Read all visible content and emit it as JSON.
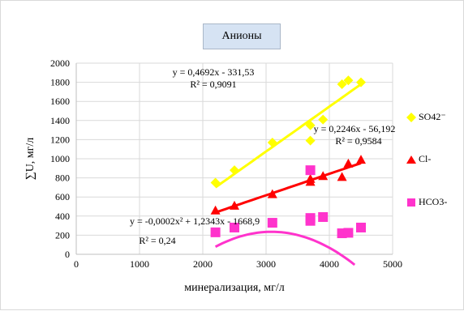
{
  "chart_data": {
    "type": "scatter",
    "title": "Анионы",
    "xlabel": "минерализация, мг/л",
    "ylabel": "∑U, мг/л",
    "xlim": [
      0,
      5000
    ],
    "ylim": [
      0,
      2000
    ],
    "x_ticks": [
      "0",
      "1000",
      "2000",
      "3000",
      "4000",
      "5000"
    ],
    "y_ticks": [
      "0",
      "200",
      "400",
      "600",
      "800",
      "1000",
      "1200",
      "1400",
      "1600",
      "1800",
      "2000"
    ],
    "grid": true,
    "legend_position": "right",
    "series": [
      {
        "name": "SO42⁻",
        "color": "#ffff00",
        "marker": "diamond",
        "points": [
          [
            2200,
            750
          ],
          [
            2500,
            880
          ],
          [
            3100,
            1170
          ],
          [
            3700,
            1350
          ],
          [
            3700,
            1190
          ],
          [
            3900,
            1410
          ],
          [
            4200,
            1780
          ],
          [
            4300,
            1820
          ],
          [
            4500,
            1800
          ]
        ],
        "trendline": {
          "kind": "linear",
          "coef": [
            0.4692,
            -331.53
          ],
          "range": [
            2200,
            4500
          ]
        },
        "equation": "y = 0,4692x - 331,53",
        "r2": "R² = 0,9091"
      },
      {
        "name": "Cl-",
        "color": "#ff0000",
        "marker": "triangle",
        "points": [
          [
            2200,
            460
          ],
          [
            2500,
            510
          ],
          [
            3100,
            630
          ],
          [
            3700,
            760
          ],
          [
            3700,
            790
          ],
          [
            3900,
            820
          ],
          [
            4200,
            810
          ],
          [
            4300,
            950
          ],
          [
            4500,
            990
          ]
        ],
        "trendline": {
          "kind": "linear",
          "coef": [
            0.2246,
            -56.192
          ],
          "range": [
            2200,
            4500
          ]
        },
        "equation": "y = 0,2246x - 56,192",
        "r2": "R² = 0,9584"
      },
      {
        "name": "HCO3-",
        "color": "#ff33cc",
        "marker": "square",
        "points": [
          [
            2200,
            230
          ],
          [
            2500,
            280
          ],
          [
            3100,
            330
          ],
          [
            3700,
            880
          ],
          [
            3700,
            380
          ],
          [
            3700,
            350
          ],
          [
            3900,
            390
          ],
          [
            4200,
            220
          ],
          [
            4300,
            225
          ],
          [
            4500,
            280
          ]
        ],
        "trendline": {
          "kind": "poly2",
          "coef": [
            -0.0002,
            1.2343,
            -1668.9
          ],
          "range": [
            2200,
            4400
          ]
        },
        "equation": "y = -0,0002x² + 1,2343x - 1668,9",
        "r2": "R² = 0,24"
      }
    ]
  }
}
